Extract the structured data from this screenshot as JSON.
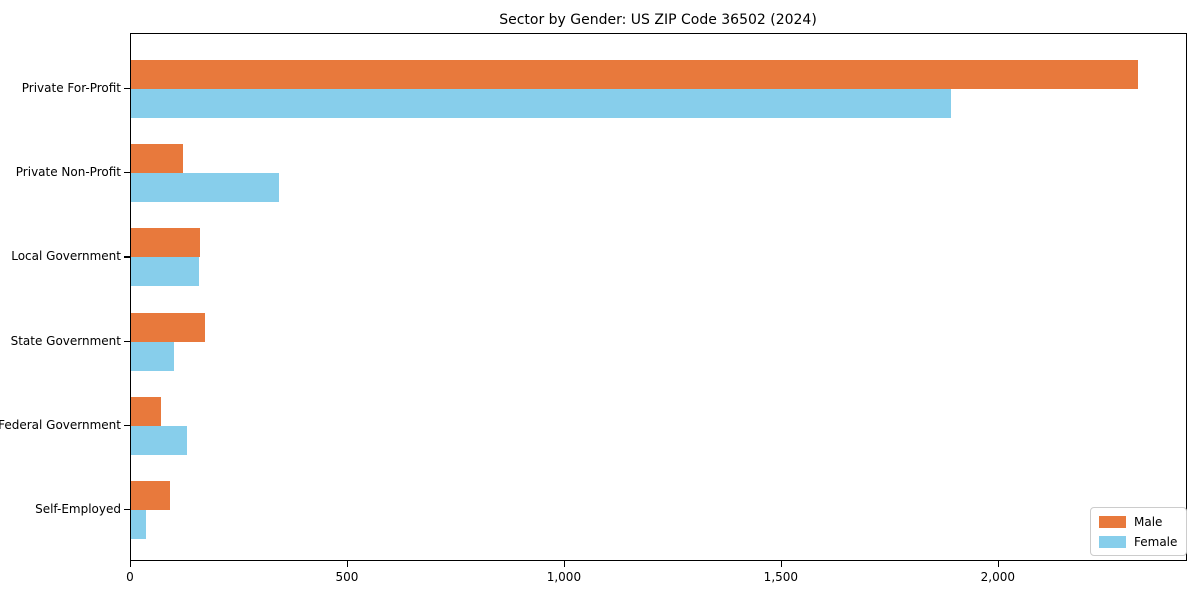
{
  "chart_data": {
    "type": "bar",
    "orientation": "horizontal",
    "title": "Sector by Gender: US ZIP Code 36502 (2024)",
    "categories": [
      "Private For-Profit",
      "Private Non-Profit",
      "Local Government",
      "State Government",
      "Federal Government",
      "Self-Employed"
    ],
    "series": [
      {
        "name": "Male",
        "color": "#e8793c",
        "values": [
          2320,
          120,
          158,
          170,
          70,
          90
        ]
      },
      {
        "name": "Female",
        "color": "#87ceeb",
        "values": [
          1890,
          340,
          157,
          100,
          130,
          34
        ]
      }
    ],
    "xlabel": "",
    "ylabel": "",
    "xlim": [
      0,
      2436
    ],
    "x_ticks": [
      0,
      500,
      1000,
      1500,
      2000
    ],
    "x_tick_labels": [
      "0",
      "500",
      "1,000",
      "1,500",
      "2,000"
    ],
    "grid": false,
    "legend": {
      "position": "lower right",
      "entries": [
        "Male",
        "Female"
      ]
    }
  },
  "colors": {
    "axis": "#000000",
    "background": "#ffffff",
    "legend_border": "#cccccc"
  }
}
